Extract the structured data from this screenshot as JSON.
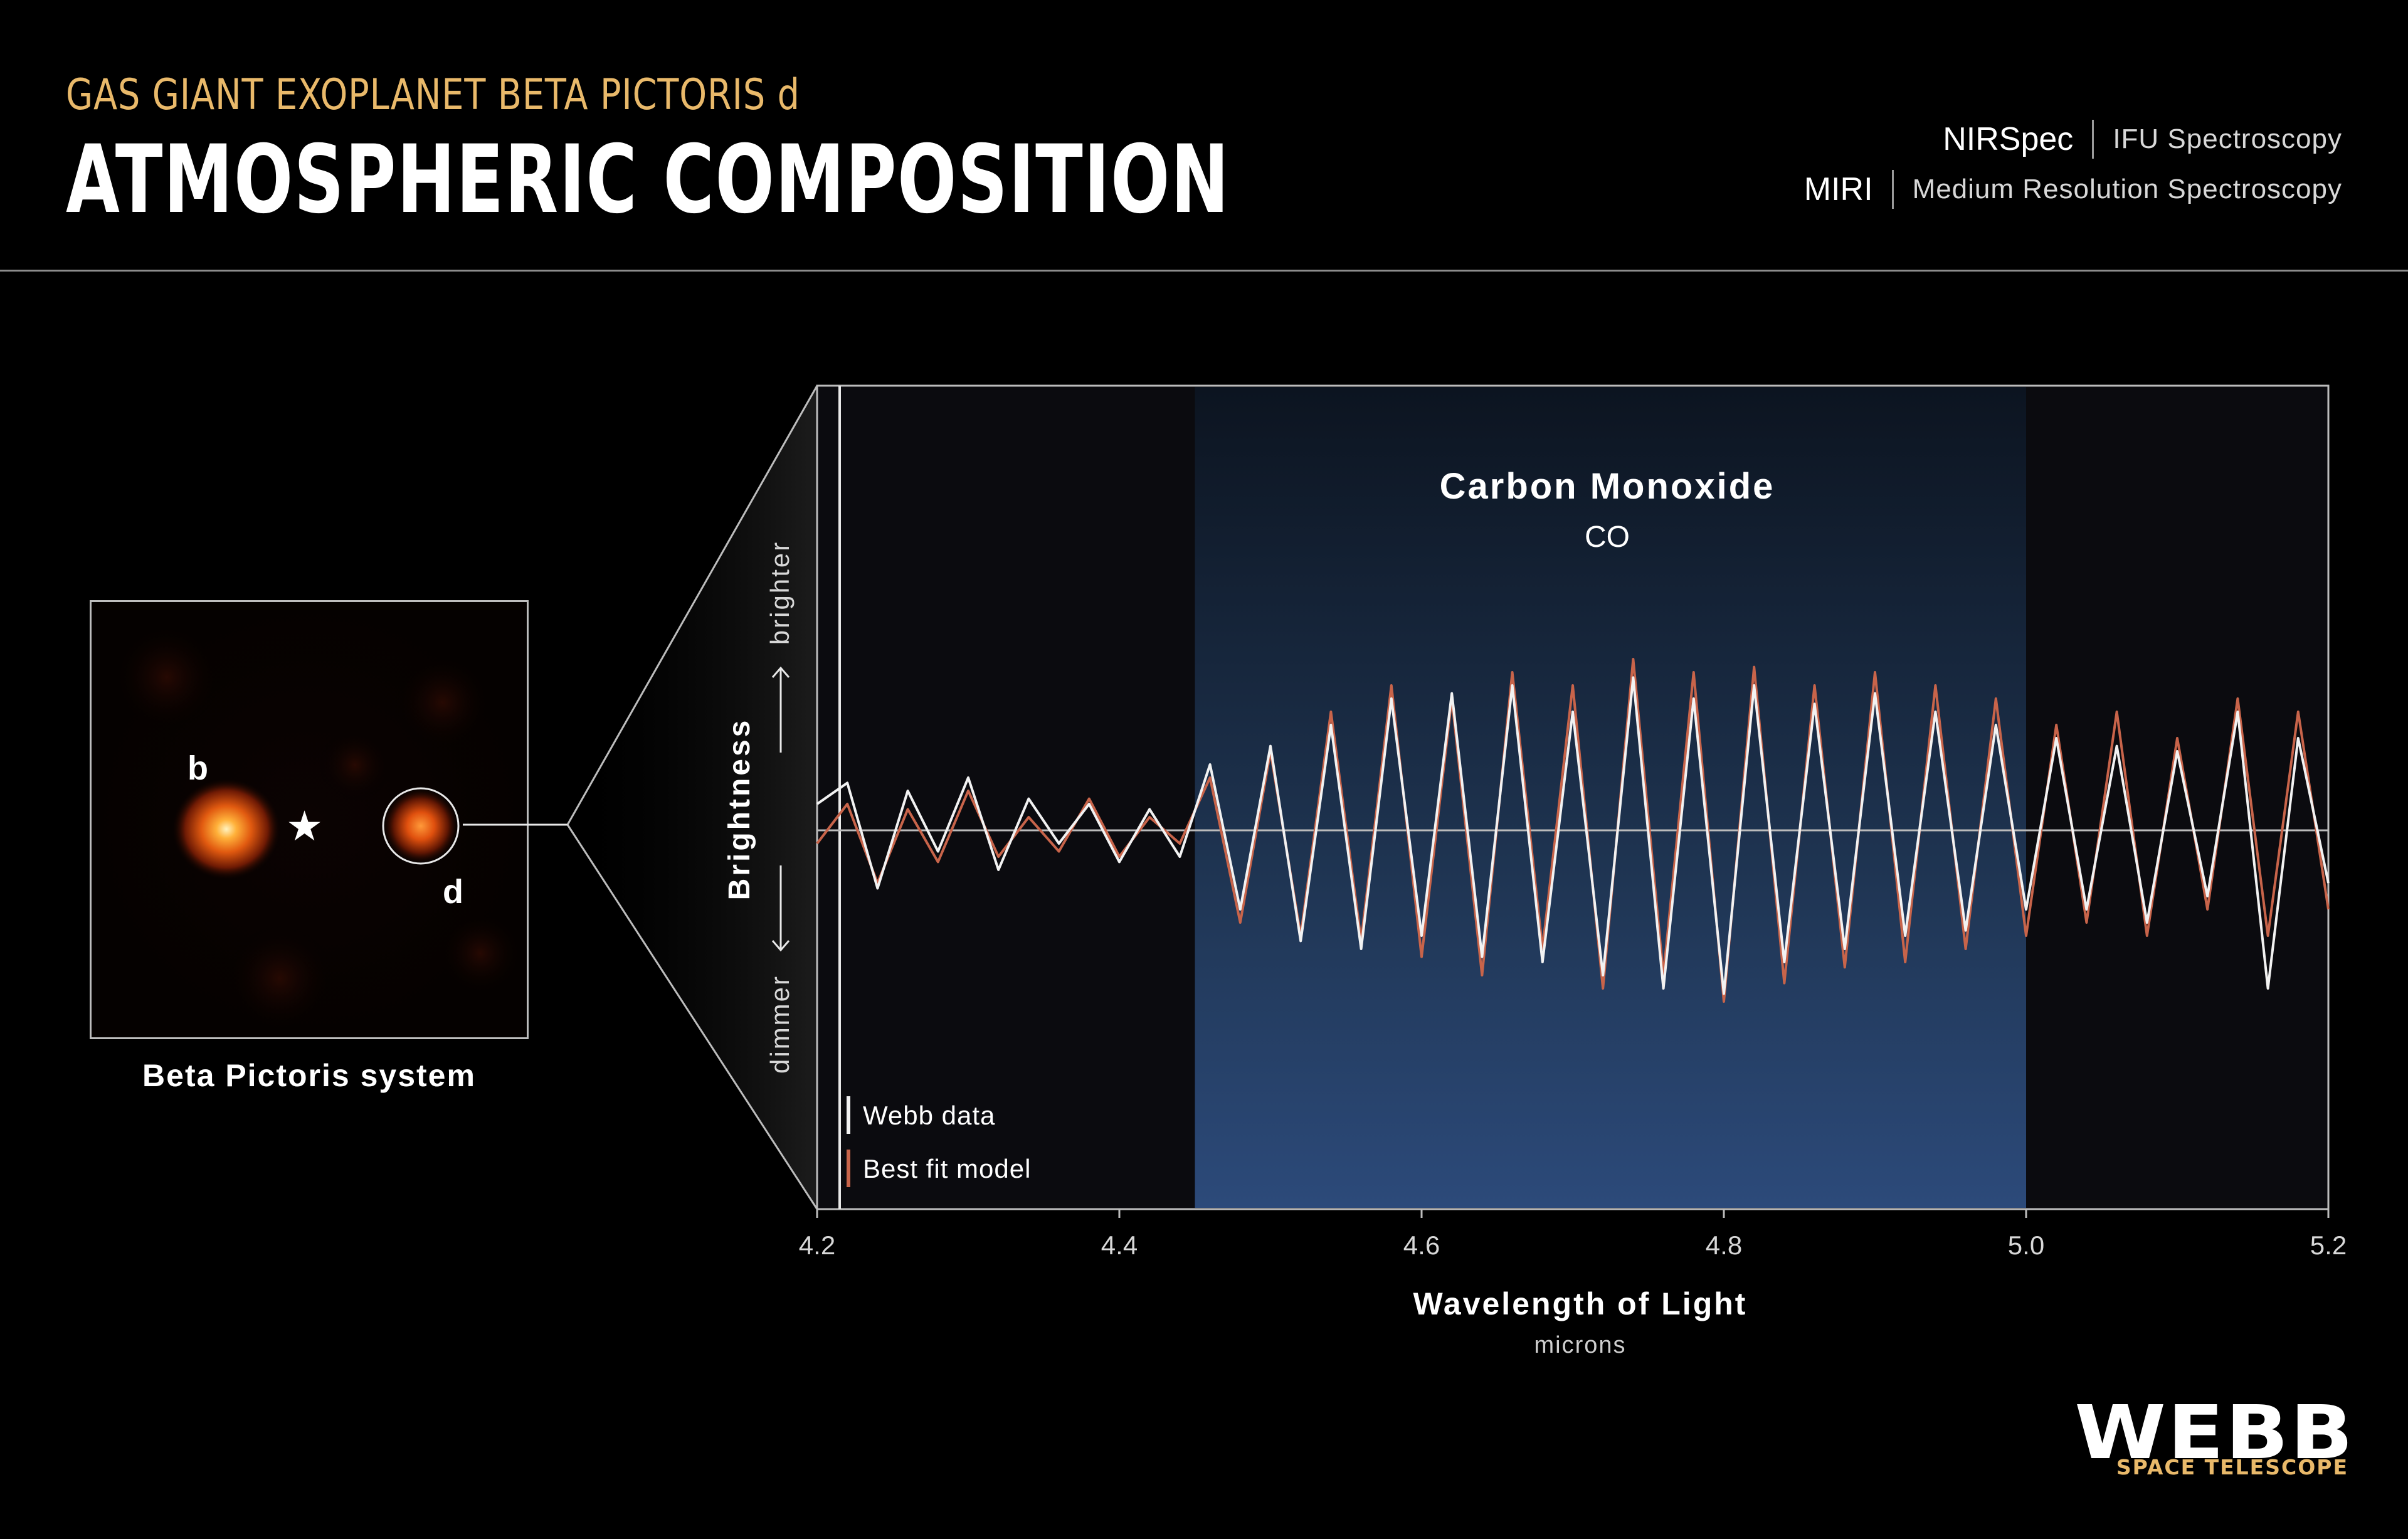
{
  "header": {
    "subtitle": "GAS GIANT EXOPLANET BETA PICTORIS d",
    "title": "ATMOSPHERIC COMPOSITION",
    "instruments": [
      {
        "name": "NIRSpec",
        "mode": "IFU Spectroscopy"
      },
      {
        "name": "MIRI",
        "mode": "Medium Resolution Spectroscopy"
      }
    ]
  },
  "thumbnail": {
    "caption": "Beta Pictoris system",
    "labels": {
      "b": "b",
      "d": "d"
    },
    "star_symbol": "★"
  },
  "chart_data": {
    "type": "line",
    "title": "Carbon Monoxide",
    "subtitle": "CO",
    "xlabel": "Wavelength of Light",
    "xunit": "microns",
    "ylabel": "Brightness",
    "ylabel_high": "brighter",
    "ylabel_low": "dimmer",
    "xlim": [
      4.2,
      5.2
    ],
    "ylim": [
      -1,
      1
    ],
    "xticks": [
      "4.2",
      "4.4",
      "4.6",
      "4.8",
      "5.0",
      "5.2"
    ],
    "highlight_band": [
      4.45,
      5.0
    ],
    "legend_position": "bottom-left",
    "series": [
      {
        "name": "Webb data",
        "color": "#f2f2f2",
        "x": [
          4.2,
          4.22,
          4.24,
          4.26,
          4.28,
          4.3,
          4.32,
          4.34,
          4.36,
          4.38,
          4.4,
          4.42,
          4.44,
          4.46,
          4.48,
          4.5,
          4.52,
          4.54,
          4.56,
          4.58,
          4.6,
          4.62,
          4.64,
          4.66,
          4.68,
          4.7,
          4.72,
          4.74,
          4.76,
          4.78,
          4.8,
          4.82,
          4.84,
          4.86,
          4.88,
          4.9,
          4.92,
          4.94,
          4.96,
          4.98,
          5.0,
          5.02,
          5.04,
          5.06,
          5.08,
          5.1,
          5.12,
          5.14,
          5.16,
          5.18,
          5.2
        ],
        "y": [
          0.1,
          0.18,
          -0.22,
          0.15,
          -0.08,
          0.2,
          -0.15,
          0.12,
          -0.05,
          0.1,
          -0.12,
          0.08,
          -0.1,
          0.25,
          -0.3,
          0.32,
          -0.42,
          0.4,
          -0.45,
          0.5,
          -0.4,
          0.52,
          -0.48,
          0.55,
          -0.5,
          0.45,
          -0.55,
          0.58,
          -0.6,
          0.5,
          -0.62,
          0.55,
          -0.5,
          0.48,
          -0.45,
          0.52,
          -0.4,
          0.45,
          -0.38,
          0.4,
          -0.3,
          0.35,
          -0.3,
          0.32,
          -0.35,
          0.3,
          -0.25,
          0.45,
          -0.6,
          0.35,
          -0.2
        ]
      },
      {
        "name": "Best fit model",
        "color": "#c8644a",
        "x": [
          4.2,
          4.22,
          4.24,
          4.26,
          4.28,
          4.3,
          4.32,
          4.34,
          4.36,
          4.38,
          4.4,
          4.42,
          4.44,
          4.46,
          4.48,
          4.5,
          4.52,
          4.54,
          4.56,
          4.58,
          4.6,
          4.62,
          4.64,
          4.66,
          4.68,
          4.7,
          4.72,
          4.74,
          4.76,
          4.78,
          4.8,
          4.82,
          4.84,
          4.86,
          4.88,
          4.9,
          4.92,
          4.94,
          4.96,
          4.98,
          5.0,
          5.02,
          5.04,
          5.06,
          5.08,
          5.1,
          5.12,
          5.14,
          5.16,
          5.18,
          5.2
        ],
        "y": [
          -0.05,
          0.1,
          -0.2,
          0.08,
          -0.12,
          0.15,
          -0.1,
          0.05,
          -0.08,
          0.12,
          -0.1,
          0.05,
          -0.05,
          0.2,
          -0.35,
          0.3,
          -0.4,
          0.45,
          -0.42,
          0.55,
          -0.48,
          0.5,
          -0.55,
          0.6,
          -0.45,
          0.55,
          -0.6,
          0.65,
          -0.55,
          0.6,
          -0.65,
          0.62,
          -0.58,
          0.55,
          -0.52,
          0.6,
          -0.5,
          0.55,
          -0.45,
          0.5,
          -0.4,
          0.4,
          -0.35,
          0.45,
          -0.4,
          0.35,
          -0.3,
          0.5,
          -0.4,
          0.45,
          -0.3
        ]
      }
    ]
  }
}
